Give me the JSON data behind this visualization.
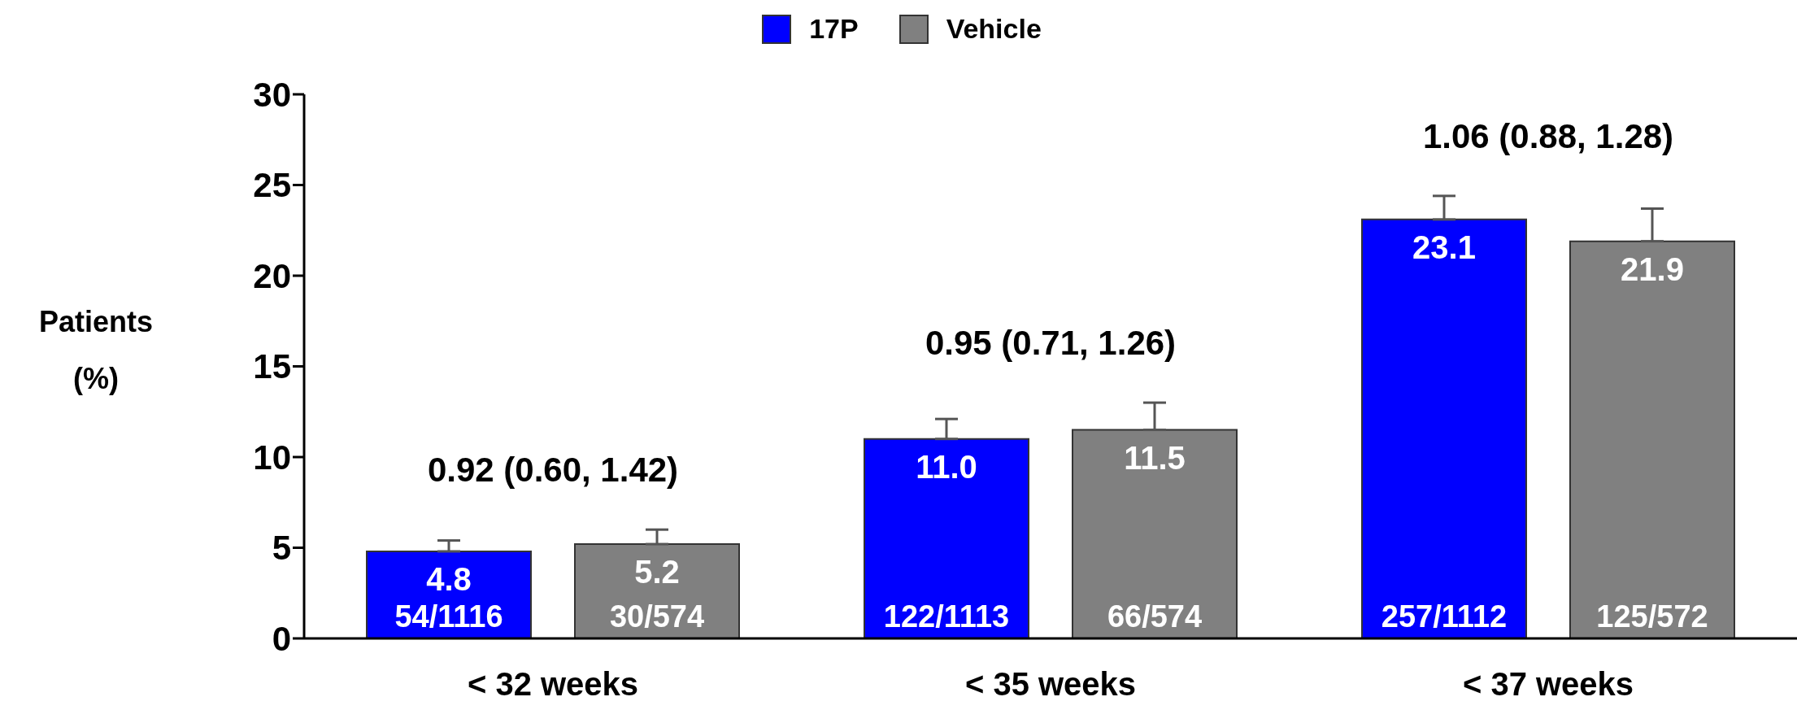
{
  "chart_data": {
    "type": "bar",
    "ylabel": "Patients (%)",
    "categories": [
      "< 32 weeks",
      "< 35 weeks",
      "< 37 weeks"
    ],
    "series": [
      {
        "name": "17P",
        "color": "#0000ff",
        "values": [
          4.8,
          11.0,
          23.1
        ],
        "value_labels": [
          "4.8",
          "11.0",
          "23.1"
        ],
        "errors": [
          [
            4.8,
            5.4
          ],
          [
            11.0,
            12.1
          ],
          [
            23.1,
            24.4
          ]
        ]
      },
      {
        "name": "Vehicle",
        "color": "#808080",
        "values": [
          5.2,
          11.5,
          21.9
        ],
        "value_labels": [
          "5.2",
          "11.5",
          "21.9"
        ],
        "errors": [
          [
            5.2,
            6.0
          ],
          [
            11.5,
            13.0
          ],
          [
            21.9,
            23.7
          ]
        ]
      }
    ],
    "annotations": [
      "54/1116",
      "30/574",
      "0.92 (0.60, 1.42)",
      "122/1113",
      "66/574",
      "0.95 (0.71, 1.26)",
      "257/1112",
      "125/572",
      "1.06 (0.88, 1.28)"
    ],
    "ylim": [
      0,
      30
    ],
    "yticks": [
      0,
      5,
      10,
      15,
      20,
      25,
      30
    ],
    "grid": false,
    "legend": "top"
  }
}
